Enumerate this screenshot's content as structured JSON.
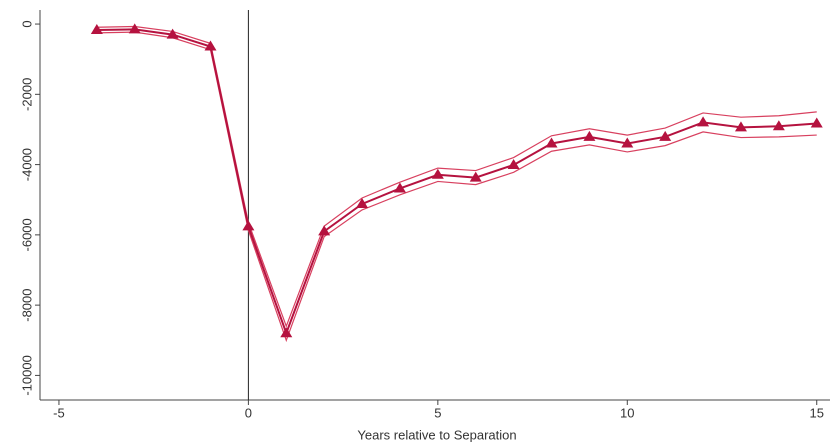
{
  "chart_data": {
    "type": "line",
    "xlabel": "Years relative to Separation",
    "x": [
      -4,
      -3,
      -2,
      -1,
      0,
      1,
      2,
      3,
      4,
      5,
      6,
      7,
      8,
      9,
      10,
      11,
      12,
      13,
      14,
      15
    ],
    "series": [
      {
        "color": "#b5123f",
        "marker": "triangle",
        "values": [
          -170,
          -150,
          -300,
          -640,
          -5760,
          -8800,
          -5900,
          -5120,
          -4680,
          -4290,
          -4370,
          -4010,
          -3400,
          -3210,
          -3400,
          -3210,
          -2800,
          -2940,
          -2910,
          -2830
        ]
      },
      {
        "color": "#d8405f",
        "values": [
          -90,
          -70,
          -210,
          -550,
          -5650,
          -8600,
          -5750,
          -4950,
          -4500,
          -4100,
          -4170,
          -3800,
          -3180,
          -2980,
          -3160,
          -2960,
          -2530,
          -2650,
          -2610,
          -2500
        ]
      },
      {
        "color": "#d8405f",
        "values": [
          -250,
          -230,
          -390,
          -730,
          -5870,
          -9000,
          -6050,
          -5290,
          -4860,
          -4480,
          -4570,
          -4220,
          -3620,
          -3440,
          -3640,
          -3460,
          -3070,
          -3230,
          -3210,
          -3160
        ]
      }
    ],
    "xlim": [
      -5.5,
      15.35
    ],
    "ylim": [
      -10700,
      400
    ],
    "xticks": [
      -5,
      0,
      5,
      10,
      15
    ],
    "yticks": [
      0,
      -2000,
      -4000,
      -6000,
      -8000,
      -10000
    ],
    "vline_x": 0
  }
}
